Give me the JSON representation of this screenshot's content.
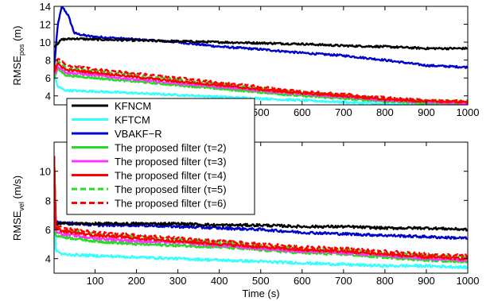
{
  "chart_data": [
    {
      "type": "line",
      "ylabel": "RMSE",
      "ylabel_sub": "pos",
      "ylabel_unit": " (m)",
      "xlim": [
        1,
        1000
      ],
      "ylim": [
        3,
        14
      ],
      "xticks": [
        100,
        200,
        300,
        400,
        500,
        600,
        700,
        800,
        900,
        1000
      ],
      "yticks": [
        4,
        6,
        8,
        10,
        12,
        14
      ],
      "grid": false,
      "series": [
        {
          "name": "KFNCM",
          "x": [
            1,
            20,
            50,
            100,
            200,
            300,
            400,
            500,
            600,
            700,
            800,
            900,
            1000
          ],
          "y": [
            9.5,
            10.3,
            10.4,
            10.3,
            10.2,
            10.1,
            10.0,
            9.9,
            9.8,
            9.6,
            9.5,
            9.3,
            9.3
          ]
        },
        {
          "name": "KFTCM",
          "x": [
            1,
            10,
            30,
            100,
            200,
            300,
            400,
            500,
            600,
            700,
            800,
            900,
            1000
          ],
          "y": [
            6.5,
            5.0,
            4.6,
            4.5,
            4.3,
            4.1,
            3.9,
            3.7,
            3.5,
            3.3,
            3.1,
            3.0,
            2.9
          ]
        },
        {
          "name": "VBAKF-R",
          "x": [
            1,
            10,
            20,
            35,
            50,
            80,
            100,
            200,
            300,
            400,
            500,
            600,
            700,
            800,
            900,
            1000
          ],
          "y": [
            7.0,
            12.0,
            14.0,
            13.0,
            11.0,
            10.7,
            10.6,
            10.3,
            10.0,
            9.5,
            9.2,
            8.8,
            8.5,
            8.0,
            7.4,
            7.2
          ]
        },
        {
          "name": "The proposed filter (τ=2)",
          "x": [
            1,
            10,
            30,
            100,
            200,
            300,
            400,
            500,
            600,
            700,
            800,
            900,
            1000
          ],
          "y": [
            6.0,
            7.0,
            6.3,
            6.0,
            5.6,
            5.2,
            4.8,
            4.4,
            4.0,
            3.7,
            3.4,
            3.2,
            3.1
          ]
        },
        {
          "name": "The proposed filter (τ=3)",
          "x": [
            1,
            10,
            30,
            100,
            200,
            300,
            400,
            500,
            600,
            700,
            800,
            900,
            1000
          ],
          "y": [
            6.3,
            7.3,
            6.6,
            6.3,
            5.8,
            5.4,
            5.0,
            4.6,
            4.2,
            3.9,
            3.5,
            3.3,
            3.2
          ]
        },
        {
          "name": "The proposed filter (τ=4)",
          "x": [
            1,
            10,
            30,
            100,
            200,
            300,
            400,
            500,
            600,
            700,
            800,
            900,
            1000
          ],
          "y": [
            6.6,
            7.6,
            6.9,
            6.6,
            6.1,
            5.6,
            5.2,
            4.7,
            4.3,
            4.0,
            3.6,
            3.4,
            3.3
          ]
        },
        {
          "name": "The proposed filter (τ=5)",
          "x": [
            1,
            10,
            30,
            100,
            200,
            300,
            400,
            500,
            600,
            700,
            800,
            900,
            1000
          ],
          "y": [
            6.8,
            7.9,
            7.1,
            6.8,
            6.3,
            5.8,
            5.3,
            4.8,
            4.4,
            4.1,
            3.7,
            3.5,
            3.4
          ]
        },
        {
          "name": "The proposed filter (τ=6)",
          "x": [
            1,
            10,
            30,
            100,
            200,
            300,
            400,
            500,
            600,
            700,
            800,
            900,
            1000
          ],
          "y": [
            7.0,
            8.2,
            7.4,
            7.0,
            6.5,
            6.0,
            5.5,
            5.0,
            4.5,
            4.2,
            3.8,
            3.5,
            3.4
          ]
        }
      ]
    },
    {
      "type": "line",
      "ylabel": "RMSE",
      "ylabel_sub": "vel",
      "ylabel_unit": " (m/s)",
      "xlabel": "Time (s)",
      "xlim": [
        1,
        1000
      ],
      "ylim": [
        3,
        12
      ],
      "xticks": [
        100,
        200,
        300,
        400,
        500,
        600,
        700,
        800,
        900,
        1000
      ],
      "yticks": [
        4,
        6,
        8,
        10
      ],
      "grid": false,
      "series": [
        {
          "name": "KFNCM",
          "x": [
            1,
            5,
            20,
            100,
            200,
            300,
            400,
            500,
            600,
            700,
            800,
            900,
            1000
          ],
          "y": [
            11.0,
            6.4,
            6.4,
            6.4,
            6.4,
            6.4,
            6.3,
            6.3,
            6.2,
            6.2,
            6.1,
            6.1,
            6.0
          ]
        },
        {
          "name": "KFTCM",
          "x": [
            1,
            5,
            20,
            100,
            200,
            300,
            400,
            500,
            600,
            700,
            800,
            900,
            1000
          ],
          "y": [
            11.0,
            4.6,
            4.3,
            4.2,
            4.1,
            4.0,
            3.9,
            3.8,
            3.7,
            3.6,
            3.5,
            3.5,
            3.4
          ]
        },
        {
          "name": "VBAKF-R",
          "x": [
            1,
            5,
            20,
            100,
            200,
            300,
            400,
            500,
            600,
            700,
            800,
            900,
            1000
          ],
          "y": [
            11.0,
            6.5,
            6.5,
            6.3,
            6.3,
            6.2,
            6.1,
            6.0,
            5.8,
            5.7,
            5.6,
            5.5,
            5.4
          ]
        },
        {
          "name": "The proposed filter (τ=2)",
          "x": [
            1,
            5,
            20,
            100,
            200,
            300,
            400,
            500,
            600,
            700,
            800,
            900,
            1000
          ],
          "y": [
            11.0,
            5.6,
            5.5,
            5.2,
            5.0,
            4.9,
            4.8,
            4.6,
            4.4,
            4.3,
            4.1,
            3.9,
            3.8
          ]
        },
        {
          "name": "The proposed filter (τ=3)",
          "x": [
            1,
            5,
            20,
            100,
            200,
            300,
            400,
            500,
            600,
            700,
            800,
            900,
            1000
          ],
          "y": [
            11.0,
            5.9,
            5.7,
            5.4,
            5.2,
            5.1,
            4.9,
            4.7,
            4.5,
            4.4,
            4.2,
            4.0,
            3.9
          ]
        },
        {
          "name": "The proposed filter (τ=4)",
          "x": [
            1,
            5,
            20,
            100,
            200,
            300,
            400,
            500,
            600,
            700,
            800,
            900,
            1000
          ],
          "y": [
            11.0,
            6.1,
            5.9,
            5.6,
            5.4,
            5.2,
            5.0,
            4.8,
            4.6,
            4.5,
            4.3,
            4.1,
            4.0
          ]
        },
        {
          "name": "The proposed filter (τ=5)",
          "x": [
            1,
            5,
            20,
            100,
            200,
            300,
            400,
            500,
            600,
            700,
            800,
            900,
            1000
          ],
          "y": [
            11.0,
            6.2,
            6.0,
            5.7,
            5.5,
            5.3,
            5.1,
            4.9,
            4.7,
            4.6,
            4.4,
            4.2,
            4.1
          ]
        },
        {
          "name": "The proposed filter (τ=6)",
          "x": [
            1,
            5,
            20,
            100,
            200,
            300,
            400,
            500,
            600,
            700,
            800,
            900,
            1000
          ],
          "y": [
            11.0,
            6.3,
            6.1,
            5.8,
            5.6,
            5.4,
            5.2,
            5.0,
            4.8,
            4.7,
            4.5,
            4.3,
            4.2
          ]
        }
      ]
    }
  ],
  "legend": {
    "placement": "overlapping lower-left of top plot",
    "entries": [
      {
        "label": "KFNCM",
        "color": "#000000",
        "style": "solid"
      },
      {
        "label": "KFTCM",
        "color": "#33ffff",
        "style": "solid"
      },
      {
        "label": "VBAKF−R",
        "color": "#0000cc",
        "style": "solid"
      },
      {
        "label": "The proposed filter (τ=2)",
        "color": "#22dd22",
        "style": "solid"
      },
      {
        "label": "The proposed filter (τ=3)",
        "color": "#ff33ff",
        "style": "solid"
      },
      {
        "label": "The proposed filter (τ=4)",
        "color": "#ff0000",
        "style": "solid"
      },
      {
        "label": "The proposed filter (τ=5)",
        "color": "#22dd22",
        "style": "dashed"
      },
      {
        "label": "The proposed filter (τ=6)",
        "color": "#ff0000",
        "style": "dashed"
      }
    ]
  }
}
